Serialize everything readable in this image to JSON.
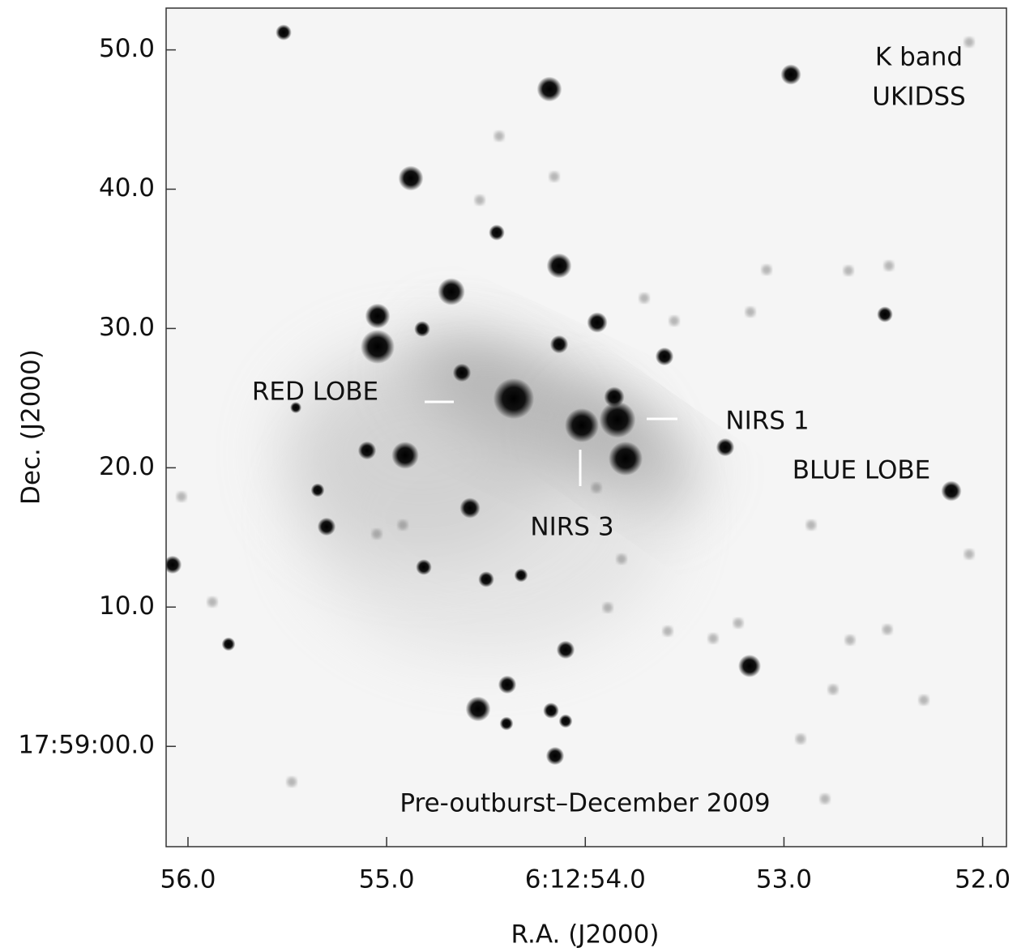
{
  "chart_data": {
    "type": "image",
    "x_label": "R.A. (J2000)",
    "y_label": "Dec. (J2000)",
    "xlim": [
      56.11,
      51.88
    ],
    "xticks": [
      {
        "value": 56,
        "label": "56.0"
      },
      {
        "value": 55,
        "label": "55.0"
      },
      {
        "value": 54,
        "label": "6:12:54.0"
      },
      {
        "value": 53,
        "label": "53.0"
      },
      {
        "value": 52,
        "label": "52.0"
      }
    ],
    "ylim": [
      -7.2,
      53.0
    ],
    "yticks": [
      {
        "value": 50,
        "label": "50.0"
      },
      {
        "value": 40,
        "label": "40.0"
      },
      {
        "value": 30,
        "label": "30.0"
      },
      {
        "value": 20,
        "label": "20.0"
      },
      {
        "value": 10,
        "label": "10.0"
      },
      {
        "value": 0,
        "label": "17:59:00.0"
      }
    ],
    "annotations": [
      "K band",
      "UKIDSS",
      "RED LOBE",
      "NIRS 1",
      "BLUE LOBE",
      "NIRS 3",
      "Pre-outburst–December 2009"
    ]
  }
}
